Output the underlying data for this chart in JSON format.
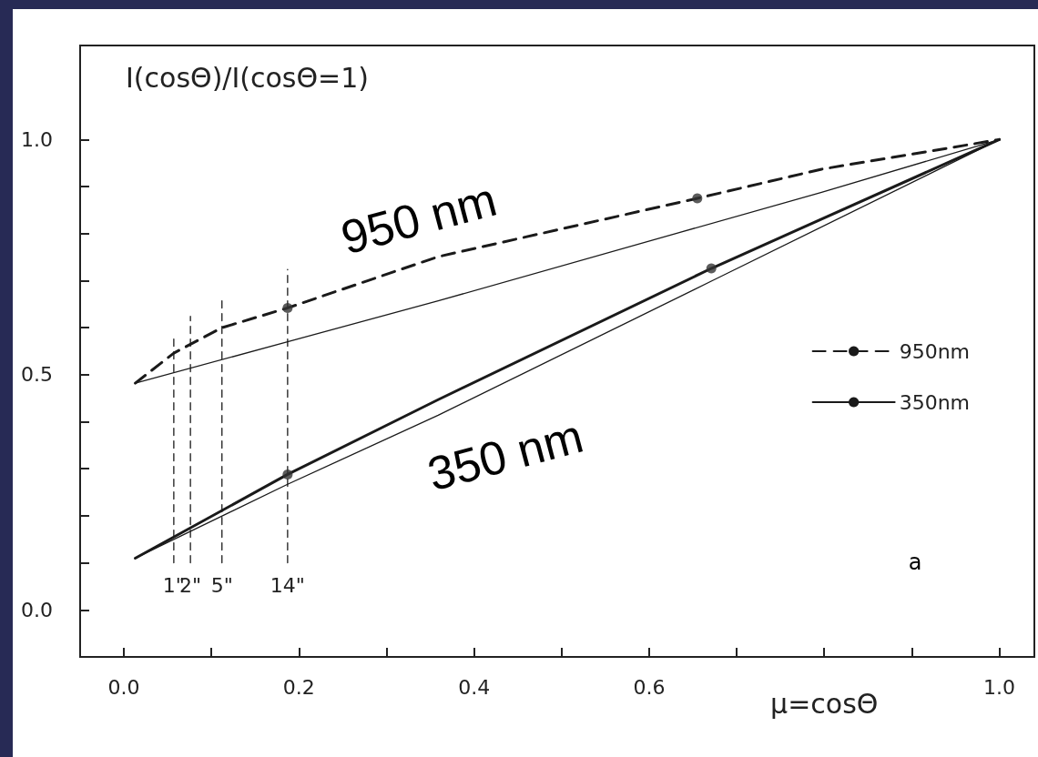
{
  "chart_data": {
    "type": "line",
    "xlabel": "μ=cosΘ",
    "ylabel": "I(cosΘ)/I(cosΘ=1)",
    "xlim": [
      -0.05,
      1.04
    ],
    "ylim": [
      -0.1,
      1.2
    ],
    "xticks": [
      {
        "value": 0,
        "label": "0.0"
      },
      {
        "value": 0.1,
        "label": null
      },
      0.2,
      {
        "value": 0.3,
        "label": null
      },
      0.4,
      {
        "value": 0.5,
        "label": null
      },
      0.6,
      {
        "value": 0.7,
        "label": null
      },
      {
        "value": 0.8,
        "label": null
      },
      {
        "value": 0.9,
        "label": null
      },
      {
        "value": 1,
        "label": "1.0"
      }
    ],
    "yticks": [
      {
        "value": 0,
        "label": "0.0"
      },
      {
        "value": 0.1,
        "label": null
      },
      {
        "value": 0.2,
        "label": null
      },
      {
        "value": 0.3,
        "label": null
      },
      {
        "value": 0.4,
        "label": null
      },
      0.5,
      {
        "value": 0.6,
        "label": null
      },
      {
        "value": 0.7,
        "label": null
      },
      {
        "value": 0.8,
        "label": null
      },
      {
        "value": 0.9,
        "label": null
      },
      {
        "value": 1,
        "label": "1.0"
      }
    ],
    "grid": false,
    "legend": "right",
    "series": [
      {
        "name": "950nm",
        "color": "#1a1a1a",
        "line_style": "dashed",
        "x": [
          0.013,
          0.057,
          0.112,
          0.187,
          0.359,
          0.655,
          0.797,
          1
        ],
        "values": [
          0.482,
          0.546,
          0.6,
          0.642,
          0.751,
          0.875,
          0.937,
          1
        ]
      },
      {
        "color": "#1a1a1a",
        "x": [
          0.013,
          0.187,
          0.359,
          0.797,
          1
        ],
        "values": [
          0.482,
          0.57,
          0.657,
          0.888,
          1
        ]
      },
      {
        "name": "350nm",
        "color": "#1a1a1a",
        "x": [
          0.013,
          0.187,
          0.359,
          0.671,
          1
        ],
        "values": [
          0.11,
          0.288,
          0.447,
          0.726,
          1
        ]
      },
      {
        "color": "#1a1a1a",
        "x": [
          0.013,
          0.187,
          0.359,
          0.671,
          1
        ],
        "values": [
          0.11,
          0.267,
          0.414,
          0.699,
          1
        ]
      },
      {
        "type": "scatter",
        "marker": "circle",
        "color": "#333333",
        "x": [
          0.187,
          0.655,
          0.187,
          0.671
        ],
        "values": [
          0.642,
          0.875,
          0.288,
          0.726
        ]
      },
      {
        "name": "1\"",
        "color": "#1a1a1a",
        "line_style": "dashed",
        "x": [
          0.057,
          0.057
        ],
        "values": [
          0.1,
          0.585
        ]
      },
      {
        "name": "2\"",
        "color": "#1a1a1a",
        "line_style": "dashed",
        "x": [
          0.076,
          0.076
        ],
        "values": [
          0.1,
          0.624
        ]
      },
      {
        "name": "5\"",
        "color": "#1a1a1a",
        "line_style": "dashed",
        "x": [
          0.112,
          0.112
        ],
        "values": [
          0.1,
          0.665
        ]
      },
      {
        "name": "14\"",
        "color": "#1a1a1a",
        "line_style": "dashed",
        "x": [
          0.187,
          0.187
        ],
        "values": [
          0.1,
          0.724
        ]
      }
    ],
    "annotations": [
      "950 nm",
      "350 nm",
      "a"
    ]
  }
}
